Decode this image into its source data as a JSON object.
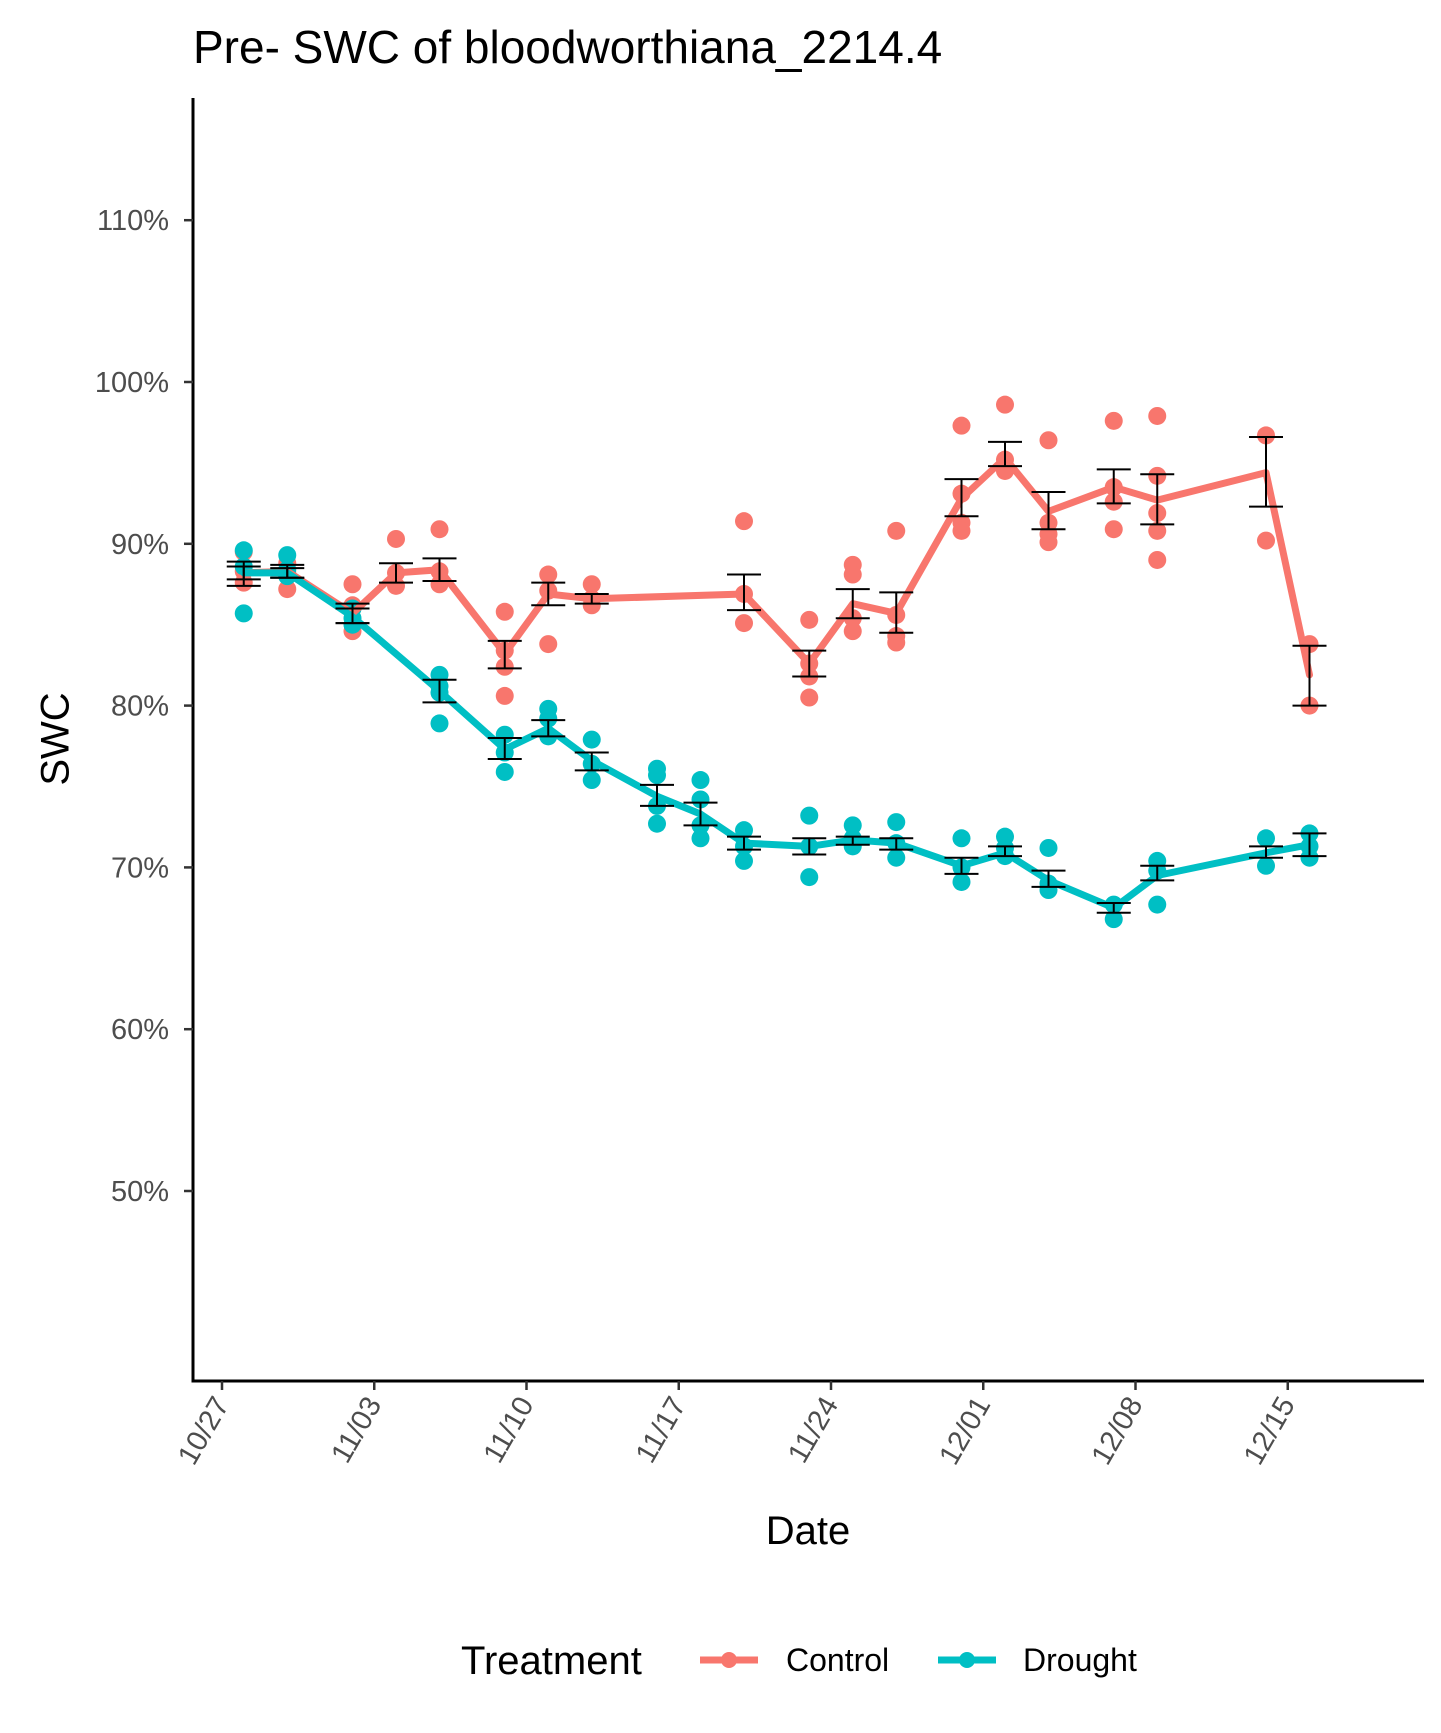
{
  "chart_data": {
    "type": "line",
    "title": "Pre- SWC of bloodworthiana_2214.4",
    "xlabel": "Date",
    "ylabel": "SWC",
    "x_ticks": [
      "10/27",
      "11/03",
      "11/10",
      "11/17",
      "11/24",
      "12/01",
      "12/08",
      "12/15"
    ],
    "y_ticks": [
      "50%",
      "60%",
      "70%",
      "80%",
      "90%",
      "100%",
      "110%"
    ],
    "ylim": [
      46.8,
      118.2
    ],
    "grid": false,
    "legend": {
      "title": "Treatment",
      "position": "bottom"
    },
    "series": [
      {
        "name": "Control",
        "color": "#F8766D",
        "points": [
          {
            "x": "10/28",
            "mean": 88.2,
            "err_low": 87.4,
            "err_high": 88.9,
            "obs": [
              89.5,
              88.3,
              87.6
            ]
          },
          {
            "x": "10/30",
            "mean": 88.3,
            "err_low": 87.9,
            "err_high": 88.7,
            "obs": [
              88.8,
              88.2,
              87.2
            ]
          },
          {
            "x": "11/02",
            "mean": 85.7,
            "err_low": 85.1,
            "err_high": 86.3,
            "obs": [
              87.5,
              86.2,
              84.6
            ]
          },
          {
            "x": "11/04",
            "mean": 88.2,
            "err_low": 87.6,
            "err_high": 88.8,
            "obs": [
              90.3,
              88.2,
              87.4
            ]
          },
          {
            "x": "11/06",
            "mean": 88.4,
            "err_low": 87.7,
            "err_high": 89.1,
            "obs": [
              90.9,
              88.3,
              87.5
            ]
          },
          {
            "x": "11/09",
            "mean": 83.2,
            "err_low": 82.3,
            "err_high": 84.0,
            "obs": [
              85.8,
              83.4,
              82.4,
              80.6
            ]
          },
          {
            "x": "11/11",
            "mean": 86.9,
            "err_low": 86.2,
            "err_high": 87.6,
            "obs": [
              88.1,
              87.1,
              83.8
            ]
          },
          {
            "x": "11/13",
            "mean": 86.6,
            "err_low": 86.3,
            "err_high": 86.9,
            "obs": [
              87.5,
              86.6,
              86.2
            ]
          },
          {
            "x": "11/20",
            "mean": 86.9,
            "err_low": 85.9,
            "err_high": 88.1,
            "obs": [
              91.4,
              86.9,
              85.1
            ]
          },
          {
            "x": "11/23",
            "mean": 82.6,
            "err_low": 81.8,
            "err_high": 83.4,
            "obs": [
              85.3,
              82.6,
              81.8,
              80.5
            ]
          },
          {
            "x": "11/25",
            "mean": 86.3,
            "err_low": 85.4,
            "err_high": 87.2,
            "obs": [
              88.7,
              88.1,
              85.4,
              84.6
            ]
          },
          {
            "x": "11/27",
            "mean": 85.7,
            "err_low": 84.5,
            "err_high": 87.0,
            "obs": [
              90.8,
              85.6,
              84.3,
              83.9
            ]
          },
          {
            "x": "11/30",
            "mean": 92.8,
            "err_low": 91.7,
            "err_high": 94.0,
            "obs": [
              97.3,
              93.1,
              91.3,
              90.8
            ]
          },
          {
            "x": "12/02",
            "mean": 95.3,
            "err_low": 94.8,
            "err_high": 96.3,
            "obs": [
              98.6,
              95.2,
              94.5
            ]
          },
          {
            "x": "12/04",
            "mean": 92.0,
            "err_low": 90.9,
            "err_high": 93.2,
            "obs": [
              96.4,
              91.3,
              90.6,
              90.1
            ]
          },
          {
            "x": "12/07",
            "mean": 93.5,
            "err_low": 92.5,
            "err_high": 94.6,
            "obs": [
              97.6,
              93.5,
              92.6,
              90.9
            ]
          },
          {
            "x": "12/09",
            "mean": 92.7,
            "err_low": 91.2,
            "err_high": 94.3,
            "obs": [
              97.9,
              94.2,
              91.9,
              90.8,
              89.0
            ]
          },
          {
            "x": "12/14",
            "mean": 94.4,
            "err_low": 92.3,
            "err_high": 96.6,
            "obs": [
              96.7,
              90.2
            ]
          },
          {
            "x": "12/16",
            "mean": 81.9,
            "err_low": 80.0,
            "err_high": 83.7,
            "obs": [
              83.8,
              80.0
            ]
          }
        ]
      },
      {
        "name": "Drought",
        "color": "#00BFC4",
        "points": [
          {
            "x": "10/28",
            "mean": 88.2,
            "err_low": 87.8,
            "err_high": 88.6,
            "obs": [
              89.6,
              88.6,
              85.7
            ]
          },
          {
            "x": "10/30",
            "mean": 88.2,
            "err_low": 87.9,
            "err_high": 88.5,
            "obs": [
              89.3,
              88.4,
              88.0
            ]
          },
          {
            "x": "11/02",
            "mean": 85.5,
            "err_low": 85.1,
            "err_high": 86.0,
            "obs": [
              86.0,
              85.4,
              85.0
            ]
          },
          {
            "x": "11/06",
            "mean": 80.9,
            "err_low": 80.2,
            "err_high": 81.6,
            "obs": [
              81.9,
              81.2,
              80.8,
              78.9
            ]
          },
          {
            "x": "11/09",
            "mean": 77.3,
            "err_low": 76.7,
            "err_high": 78.0,
            "obs": [
              78.2,
              77.1,
              75.9
            ]
          },
          {
            "x": "11/11",
            "mean": 78.6,
            "err_low": 78.1,
            "err_high": 79.1,
            "obs": [
              79.8,
              79.2,
              78.1
            ]
          },
          {
            "x": "11/13",
            "mean": 76.6,
            "err_low": 76.0,
            "err_high": 77.1,
            "obs": [
              77.9,
              76.4,
              75.4
            ]
          },
          {
            "x": "11/16",
            "mean": 74.4,
            "err_low": 73.8,
            "err_high": 75.1,
            "obs": [
              76.1,
              75.7,
              73.8,
              72.7
            ]
          },
          {
            "x": "11/18",
            "mean": 73.3,
            "err_low": 72.6,
            "err_high": 74.0,
            "obs": [
              75.4,
              74.2,
              72.6,
              71.8
            ]
          },
          {
            "x": "11/20",
            "mean": 71.5,
            "err_low": 71.1,
            "err_high": 71.9,
            "obs": [
              72.3,
              71.3,
              70.4
            ]
          },
          {
            "x": "11/23",
            "mean": 71.3,
            "err_low": 70.8,
            "err_high": 71.8,
            "obs": [
              73.2,
              71.3,
              69.4
            ]
          },
          {
            "x": "11/25",
            "mean": 71.7,
            "err_low": 71.4,
            "err_high": 71.9,
            "obs": [
              72.6,
              71.8,
              71.3
            ]
          },
          {
            "x": "11/27",
            "mean": 71.5,
            "err_low": 71.1,
            "err_high": 71.8,
            "obs": [
              72.8,
              71.5,
              70.6
            ]
          },
          {
            "x": "11/30",
            "mean": 70.1,
            "err_low": 69.6,
            "err_high": 70.6,
            "obs": [
              71.8,
              70.0,
              69.1
            ]
          },
          {
            "x": "12/02",
            "mean": 70.9,
            "err_low": 70.7,
            "err_high": 71.3,
            "obs": [
              71.9,
              71.2,
              70.7
            ]
          },
          {
            "x": "12/04",
            "mean": 69.2,
            "err_low": 68.8,
            "err_high": 69.8,
            "obs": [
              71.2,
              69.0,
              68.6
            ]
          },
          {
            "x": "12/07",
            "mean": 67.5,
            "err_low": 67.2,
            "err_high": 67.8,
            "obs": [
              67.7,
              66.8
            ]
          },
          {
            "x": "12/09",
            "mean": 69.5,
            "err_low": 69.2,
            "err_high": 70.1,
            "obs": [
              70.4,
              69.8,
              67.7
            ]
          },
          {
            "x": "12/14",
            "mean": 70.9,
            "err_low": 70.6,
            "err_high": 71.3,
            "obs": [
              71.8,
              70.1
            ]
          },
          {
            "x": "12/16",
            "mean": 71.4,
            "err_low": 70.7,
            "err_high": 72.1,
            "obs": [
              72.1,
              71.3,
              70.6
            ]
          }
        ]
      }
    ]
  }
}
